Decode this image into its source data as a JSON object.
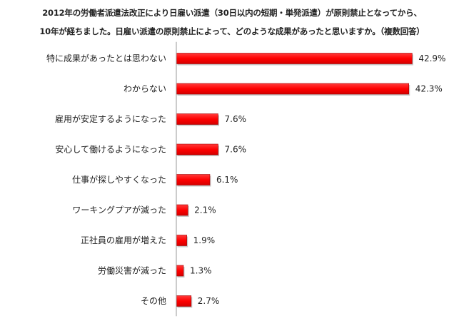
{
  "chart_data": {
    "type": "bar",
    "orientation": "horizontal",
    "title_lines": [
      "2012年の労働者派遣法改正により日雇い派遣（30日以内の短期・単発派遣）が原則禁止となってから、",
      "10年が経ちました。日雇い派遣の原則禁止によって、どのような成果があったと思いますか。（複数回答）"
    ],
    "categories": [
      "特に成果があったとは思わない",
      "わからない",
      "雇用が安定するようになった",
      "安心して働けるようになった",
      "仕事が探しやすくなった",
      "ワーキングプアが減った",
      "正社員の雇用が増えた",
      "労働災害が減った",
      "その他"
    ],
    "values": [
      42.9,
      42.3,
      7.6,
      7.6,
      6.1,
      2.1,
      1.9,
      1.3,
      2.7
    ],
    "value_labels": [
      "42.9%",
      "42.3%",
      "7.6%",
      "7.6%",
      "6.1%",
      "2.1%",
      "1.9%",
      "1.3%",
      "2.7%"
    ],
    "unit": "%",
    "xlim": [
      0,
      50
    ],
    "grid": false,
    "legend": "none",
    "colors": {
      "bar_fill": "#ff0000",
      "bar_shadow": "#a00000",
      "axis": "#999999"
    }
  }
}
